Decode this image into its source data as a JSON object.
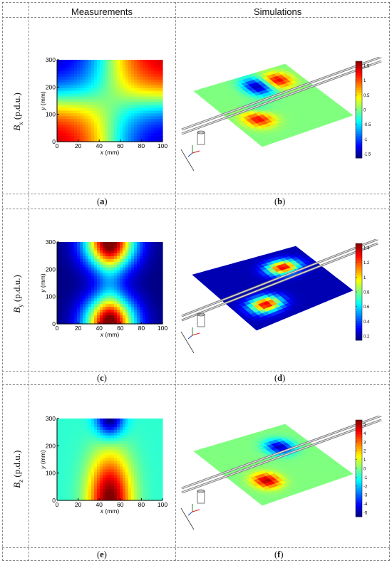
{
  "headers": {
    "left": "Measurements",
    "right": "Simulations"
  },
  "rows": [
    {
      "label_sym": "B",
      "label_sub": "x",
      "label_unit": " (p.d.u.)",
      "meas_letter": "a",
      "sim_letter": "b"
    },
    {
      "label_sym": "B",
      "label_sub": "y",
      "label_unit": " (p.d.u.)",
      "meas_letter": "c",
      "sim_letter": "d"
    },
    {
      "label_sym": "B",
      "label_sub": "z",
      "label_unit": " (p.d.u.)",
      "meas_letter": "e",
      "sim_letter": "f"
    }
  ],
  "chart_data": [
    {
      "panel": "a",
      "type": "heatmap",
      "xlabel_sym": "x",
      "xlabel_unit": " (mm)",
      "ylabel_sym": "y",
      "ylabel_unit": " (mm)",
      "xlim": [
        0,
        100
      ],
      "ylim": [
        0,
        300
      ],
      "xticks": [
        "0",
        "20",
        "40",
        "60",
        "80",
        "100"
      ],
      "yticks": [
        "0",
        "100",
        "200",
        "300"
      ],
      "pattern": "saddle"
    },
    {
      "panel": "b",
      "type": "heatmap",
      "colorbar_ticks": [
        "1.5",
        "1",
        "0.5",
        "0",
        "-0.5",
        "-1",
        "-1.5"
      ]
    },
    {
      "panel": "c",
      "type": "heatmap",
      "xlabel_sym": "x",
      "xlabel_unit": " (mm)",
      "ylabel_sym": "y",
      "ylabel_unit": " (mm)",
      "xlim": [
        0,
        100
      ],
      "ylim": [
        0,
        300
      ],
      "xticks": [
        "0",
        "20",
        "40",
        "60",
        "80",
        "100"
      ],
      "yticks": [
        "0",
        "100",
        "200",
        "300"
      ],
      "pattern": "hourglass"
    },
    {
      "panel": "d",
      "type": "heatmap",
      "colorbar_ticks": [
        "1.4",
        "1.2",
        "1",
        "0.8",
        "0.6",
        "0.4",
        "0.2"
      ]
    },
    {
      "panel": "e",
      "type": "heatmap",
      "xlabel_sym": "x",
      "xlabel_unit": " (mm)",
      "ylabel_sym": "y",
      "ylabel_unit": " (mm)",
      "xlim": [
        0,
        100
      ],
      "ylim": [
        0,
        300
      ],
      "xticks": [
        "0",
        "20",
        "40",
        "60",
        "80",
        "100"
      ],
      "yticks": [
        "0",
        "100",
        "200",
        "300"
      ],
      "pattern": "dipole"
    },
    {
      "panel": "f",
      "type": "heatmap",
      "colorbar_ticks": [
        "5",
        "4",
        "3",
        "2",
        "1",
        "0",
        "-1",
        "-2",
        "-3",
        "-4",
        "-5"
      ]
    }
  ]
}
